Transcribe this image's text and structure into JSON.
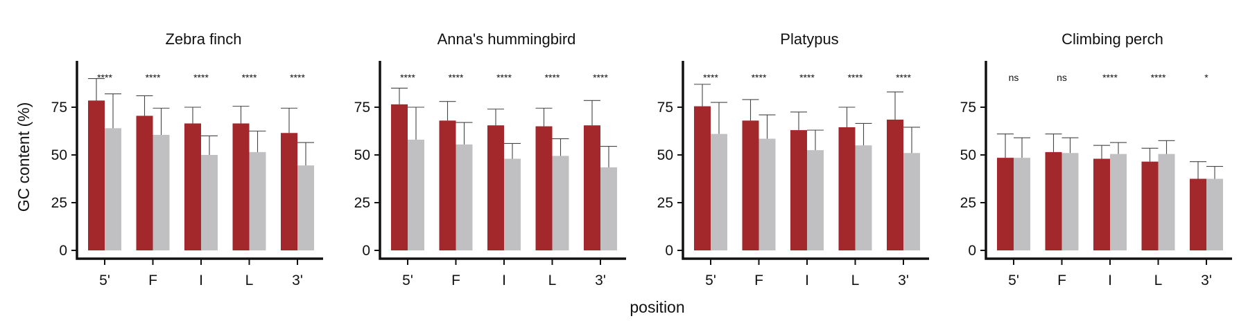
{
  "figure": {
    "xlabel": "position",
    "ylabel": "GC content (%)"
  },
  "colors": {
    "series_a": "#a3282b",
    "series_b": "#c0c0c2",
    "error_bar": "#444444",
    "axis": "#111111"
  },
  "chart_data": [
    {
      "type": "bar",
      "title": "Zebra finch",
      "categories": [
        "5'",
        "F",
        "I",
        "L",
        "3'"
      ],
      "ylim": [
        0,
        100
      ],
      "yticks": [
        0,
        25,
        50,
        75
      ],
      "series": [
        {
          "values": [
            78.5,
            70.5,
            66.5,
            66.5,
            61.5
          ],
          "errors": [
            11.5,
            10.5,
            8.5,
            9.0,
            13.0
          ]
        },
        {
          "values": [
            64.0,
            60.5,
            50.0,
            51.5,
            44.5
          ],
          "errors": [
            18.0,
            14.0,
            10.0,
            11.0,
            12.0
          ]
        }
      ],
      "annotations": [
        "****",
        "****",
        "****",
        "****",
        "****"
      ]
    },
    {
      "type": "bar",
      "title": "Anna's hummingbird",
      "categories": [
        "5'",
        "F",
        "I",
        "L",
        "3'"
      ],
      "ylim": [
        0,
        100
      ],
      "yticks": [
        0,
        25,
        50,
        75
      ],
      "series": [
        {
          "values": [
            76.5,
            68.0,
            65.5,
            65.0,
            65.5
          ],
          "errors": [
            8.5,
            10.0,
            8.5,
            9.5,
            13.0
          ]
        },
        {
          "values": [
            58.0,
            55.5,
            48.0,
            49.5,
            43.5
          ],
          "errors": [
            17.0,
            11.5,
            8.0,
            9.0,
            11.0
          ]
        }
      ],
      "annotations": [
        "****",
        "****",
        "****",
        "****",
        "****"
      ]
    },
    {
      "type": "bar",
      "title": "Platypus",
      "categories": [
        "5'",
        "F",
        "I",
        "L",
        "3'"
      ],
      "ylim": [
        0,
        100
      ],
      "yticks": [
        0,
        25,
        50,
        75
      ],
      "series": [
        {
          "values": [
            75.5,
            68.0,
            63.0,
            64.5,
            68.5
          ],
          "errors": [
            11.5,
            11.0,
            9.5,
            10.5,
            14.5
          ]
        },
        {
          "values": [
            61.0,
            58.5,
            52.5,
            55.0,
            51.0
          ],
          "errors": [
            16.5,
            12.5,
            10.5,
            11.5,
            13.5
          ]
        }
      ],
      "annotations": [
        "****",
        "****",
        "****",
        "****",
        "****"
      ]
    },
    {
      "type": "bar",
      "title": "Climbing perch",
      "categories": [
        "5'",
        "F",
        "I",
        "L",
        "3'"
      ],
      "ylim": [
        0,
        100
      ],
      "yticks": [
        0,
        25,
        50,
        75
      ],
      "series": [
        {
          "values": [
            48.5,
            51.5,
            48.0,
            46.5,
            37.5
          ],
          "errors": [
            12.5,
            9.5,
            7.0,
            7.0,
            9.0
          ]
        },
        {
          "values": [
            48.5,
            51.0,
            50.5,
            50.5,
            37.5
          ],
          "errors": [
            10.5,
            8.0,
            6.0,
            7.0,
            6.5
          ]
        }
      ],
      "annotations": [
        "ns",
        "ns",
        "****",
        "****",
        "*"
      ]
    }
  ]
}
